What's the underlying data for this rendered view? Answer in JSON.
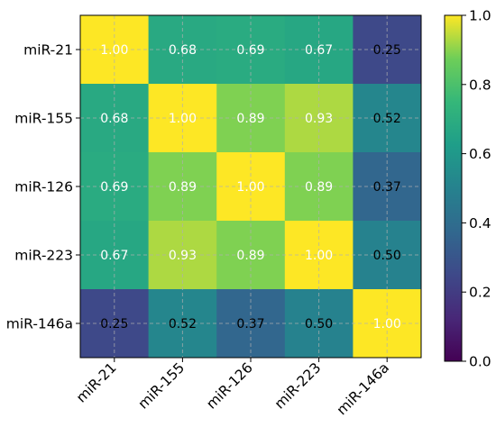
{
  "chart_data": {
    "type": "heatmap",
    "title": "",
    "xlabel": "",
    "ylabel": "",
    "x_labels": [
      "miR-21",
      "miR-155",
      "miR-126",
      "miR-223",
      "miR-146a"
    ],
    "y_labels": [
      "miR-21",
      "miR-155",
      "miR-126",
      "miR-223",
      "miR-146a"
    ],
    "values": [
      [
        1.0,
        0.68,
        0.69,
        0.67,
        0.25
      ],
      [
        0.68,
        1.0,
        0.89,
        0.93,
        0.52
      ],
      [
        0.69,
        0.89,
        1.0,
        0.89,
        0.37
      ],
      [
        0.67,
        0.93,
        0.89,
        1.0,
        0.5
      ],
      [
        0.25,
        0.52,
        0.37,
        0.5,
        1.0
      ]
    ],
    "value_format": "2 decimals",
    "colormap": "viridis",
    "colorbar": {
      "range": [
        0.0,
        1.0
      ],
      "ticks": [
        "0.0",
        "0.2",
        "0.4",
        "0.6",
        "0.8",
        "1.0"
      ]
    },
    "grid": true,
    "legend": "colorbar at right"
  }
}
